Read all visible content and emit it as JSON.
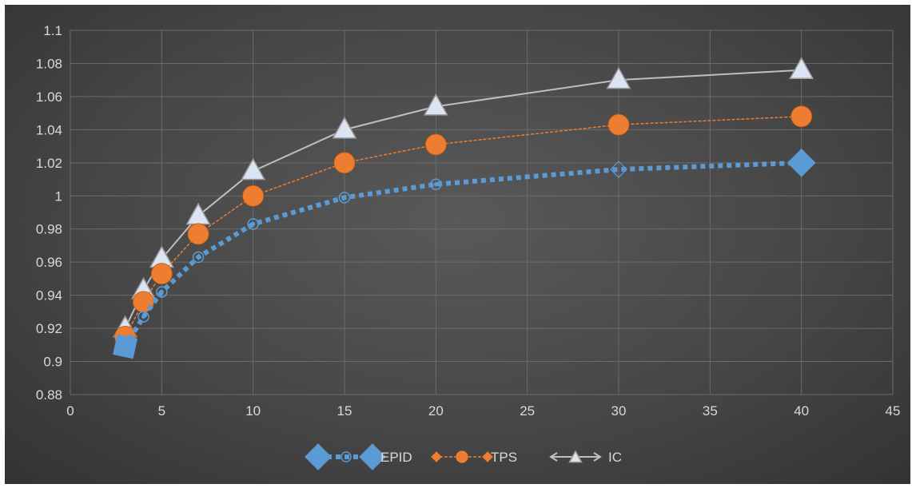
{
  "chart_data": {
    "type": "line",
    "title": "",
    "xlabel": "",
    "ylabel": "",
    "xlim": [
      0,
      45
    ],
    "ylim": [
      0.88,
      1.1
    ],
    "x_ticks": [
      0,
      5,
      10,
      15,
      20,
      25,
      30,
      35,
      40,
      45
    ],
    "y_ticks": [
      0.88,
      0.9,
      0.92,
      0.94,
      0.96,
      0.98,
      1,
      1.02,
      1.04,
      1.06,
      1.08,
      1.1
    ],
    "grid": true,
    "legend_position": "bottom",
    "x": [
      3,
      4,
      5,
      7,
      10,
      15,
      20,
      30,
      40
    ],
    "series": [
      {
        "name": "EPID",
        "color": "#5b9bd5",
        "values": [
          0.909,
          0.927,
          0.942,
          0.963,
          0.983,
          0.999,
          1.007,
          1.016,
          1.02
        ]
      },
      {
        "name": "TPS",
        "color": "#ed7d31",
        "values": [
          0.915,
          0.936,
          0.953,
          0.977,
          1.0,
          1.02,
          1.031,
          1.043,
          1.048
        ]
      },
      {
        "name": "IC",
        "color": "#bfbfbf",
        "values": [
          0.92,
          0.943,
          0.962,
          0.988,
          1.015,
          1.04,
          1.054,
          1.07,
          1.076
        ]
      }
    ]
  }
}
